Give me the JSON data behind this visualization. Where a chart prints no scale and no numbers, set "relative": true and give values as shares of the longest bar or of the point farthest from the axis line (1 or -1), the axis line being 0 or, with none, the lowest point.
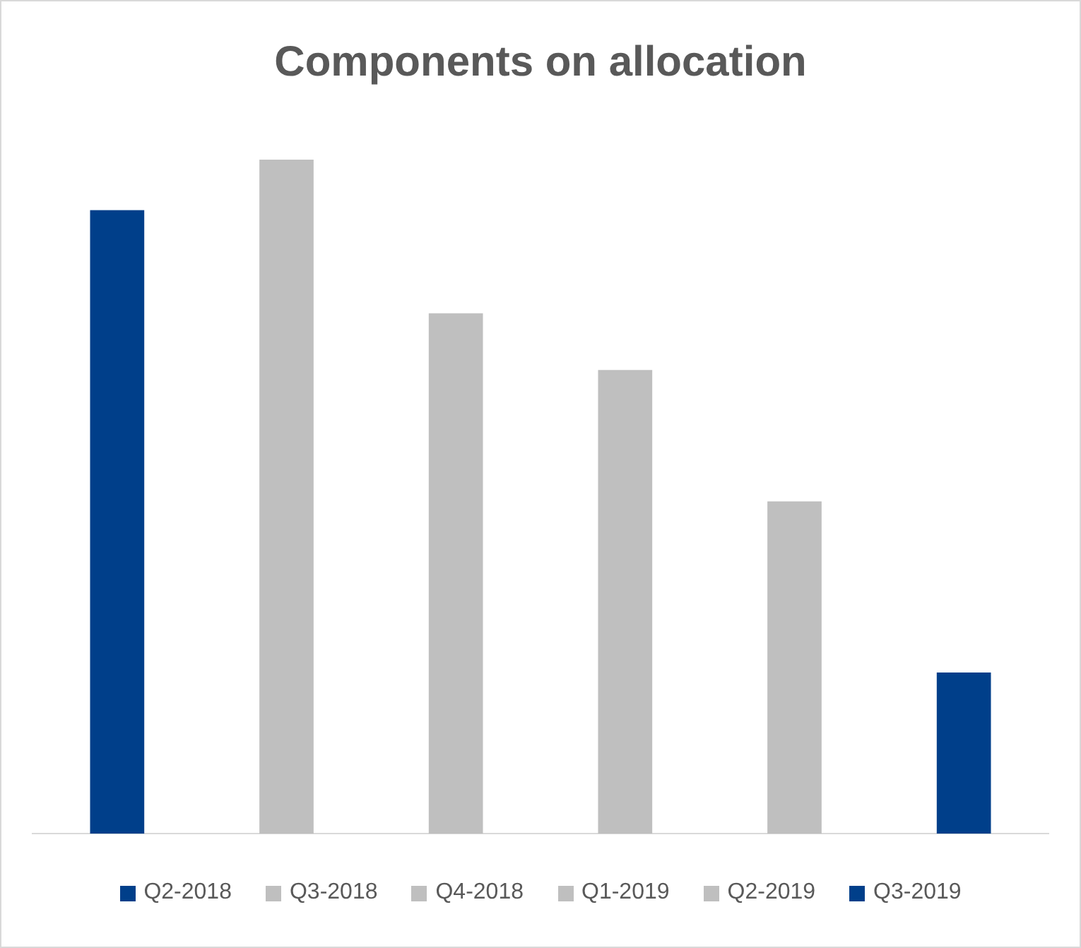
{
  "chart_data": {
    "type": "bar",
    "title": "Components on allocation",
    "relative": true,
    "categories": [
      "Q2-2018",
      "Q3-2018",
      "Q4-2018",
      "Q1-2019",
      "Q2-2019",
      "Q3-2019"
    ],
    "values": [
      0.925,
      1,
      0.772,
      0.688,
      0.493,
      0.239
    ],
    "colors": [
      "#003f8a",
      "#bfbfbf",
      "#bfbfbf",
      "#bfbfbf",
      "#bfbfbf",
      "#003f8a"
    ],
    "tick_labels": false,
    "grid": false
  }
}
